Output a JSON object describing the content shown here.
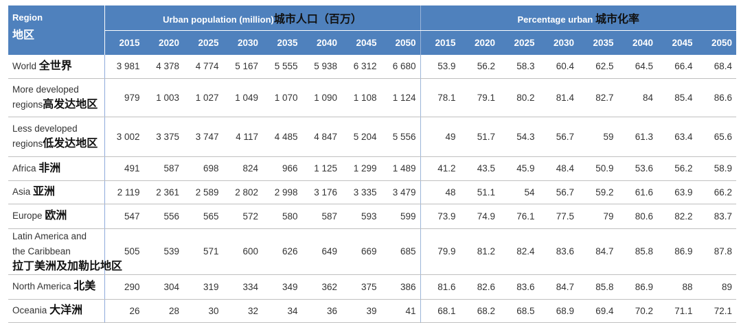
{
  "header": {
    "region_en": "Region",
    "region_zh": "地区",
    "urban_en": "Urban population (million)",
    "urban_zh": "城市人口（百万）",
    "pct_en": "Percentage urban",
    "pct_zh": "城市化率",
    "urban_years": [
      "2015",
      "2020",
      "2025",
      "2030",
      "2035",
      "2040",
      "2045",
      "2050"
    ],
    "pct_years": [
      "2015",
      "2020",
      "2025",
      "2030",
      "2035",
      "2040",
      "2045",
      "2050"
    ]
  },
  "rows": [
    {
      "region_en": "World",
      "region_zh": "全世界",
      "urban": [
        "3 981",
        "4 378",
        "4 774",
        "5 167",
        "5 555",
        "5 938",
        "6 312",
        "6 680"
      ],
      "pct": [
        "53.9",
        "56.2",
        "58.3",
        "60.4",
        "62.5",
        "64.5",
        "66.4",
        "68.4"
      ]
    },
    {
      "region_en": "More developed regions",
      "region_zh": "高发达地区",
      "urban": [
        "979",
        "1 003",
        "1 027",
        "1 049",
        "1 070",
        "1 090",
        "1 108",
        "1 124"
      ],
      "pct": [
        "78.1",
        "79.1",
        "80.2",
        "81.4",
        "82.7",
        "84",
        "85.4",
        "86.6"
      ]
    },
    {
      "region_en": "Less developed regions",
      "region_zh": "低发达地区",
      "urban": [
        "3 002",
        "3 375",
        "3 747",
        "4 117",
        "4 485",
        "4 847",
        "5 204",
        "5 556"
      ],
      "pct": [
        "49",
        "51.7",
        "54.3",
        "56.7",
        "59",
        "61.3",
        "63.4",
        "65.6"
      ]
    },
    {
      "region_en": "Africa",
      "region_zh": "非洲",
      "urban": [
        "491",
        "587",
        "698",
        "824",
        "966",
        "1 125",
        "1 299",
        "1 489"
      ],
      "pct": [
        "41.2",
        "43.5",
        "45.9",
        "48.4",
        "50.9",
        "53.6",
        "56.2",
        "58.9"
      ]
    },
    {
      "region_en": "Asia",
      "region_zh": "亚洲",
      "urban": [
        "2 119",
        "2 361",
        "2 589",
        "2 802",
        "2 998",
        "3 176",
        "3 335",
        "3 479"
      ],
      "pct": [
        "48",
        "51.1",
        "54",
        "56.7",
        "59.2",
        "61.6",
        "63.9",
        "66.2"
      ]
    },
    {
      "region_en": "Europe",
      "region_zh": "欧洲",
      "urban": [
        "547",
        "556",
        "565",
        "572",
        "580",
        "587",
        "593",
        "599"
      ],
      "pct": [
        "73.9",
        "74.9",
        "76.1",
        "77.5",
        "79",
        "80.6",
        "82.2",
        "83.7"
      ]
    },
    {
      "region_en": "Latin America and the Caribbean",
      "region_zh": "拉丁美洲及加勒比地区",
      "urban": [
        "505",
        "539",
        "571",
        "600",
        "626",
        "649",
        "669",
        "685"
      ],
      "pct": [
        "79.9",
        "81.2",
        "82.4",
        "83.6",
        "84.7",
        "85.8",
        "86.9",
        "87.8"
      ]
    },
    {
      "region_en": "North America",
      "region_zh": "北美",
      "urban": [
        "290",
        "304",
        "319",
        "334",
        "349",
        "362",
        "375",
        "386"
      ],
      "pct": [
        "81.6",
        "82.6",
        "83.6",
        "84.7",
        "85.8",
        "86.9",
        "88",
        "89"
      ]
    },
    {
      "region_en": "Oceania",
      "region_zh": "大洋洲",
      "urban": [
        "26",
        "28",
        "30",
        "32",
        "34",
        "36",
        "39",
        "41"
      ],
      "pct": [
        "68.1",
        "68.2",
        "68.5",
        "68.9",
        "69.4",
        "70.2",
        "71.1",
        "72.1"
      ]
    }
  ]
}
